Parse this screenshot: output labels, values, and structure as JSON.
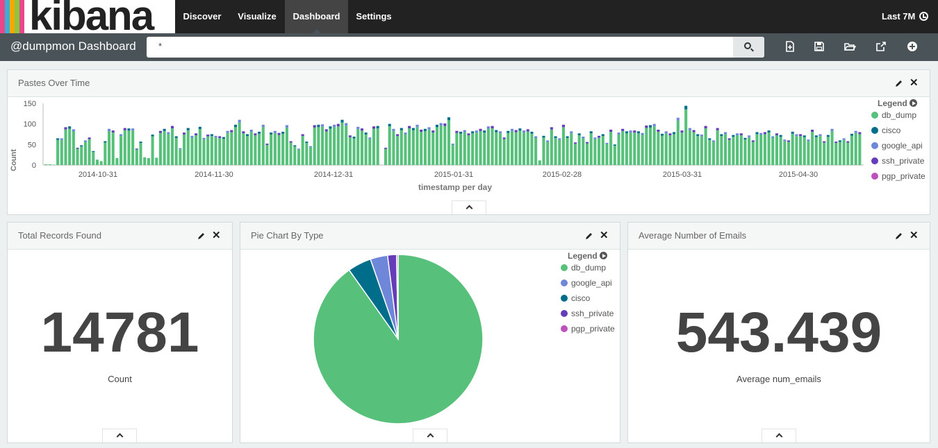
{
  "app": {
    "name": "kibana"
  },
  "nav": {
    "tabs": [
      {
        "label": "Discover"
      },
      {
        "label": "Visualize"
      },
      {
        "label": "Dashboard"
      },
      {
        "label": "Settings"
      }
    ],
    "active_tab": "Dashboard",
    "time_picker": "Last 7M"
  },
  "dashboard": {
    "title": "@dumpmon Dashboard",
    "query": "*"
  },
  "colors": {
    "db_dump": "#57c17b",
    "cisco": "#006e8a",
    "google_api": "#6f87d8",
    "ssh_private": "#663db8",
    "pgp_private": "#bc52bc"
  },
  "panels": {
    "pastes": {
      "title": "Pastes Over Time",
      "xlabel": "timestamp per day",
      "ylabel": "Count",
      "legend_title": "Legend",
      "legend": [
        "db_dump",
        "cisco",
        "google_api",
        "ssh_private",
        "pgp_private"
      ]
    },
    "total": {
      "title": "Total Records Found",
      "value": "14781",
      "label": "Count"
    },
    "pie": {
      "title": "Pie Chart By Type",
      "legend_title": "Legend",
      "legend": [
        "db_dump",
        "google_api",
        "cisco",
        "ssh_private",
        "pgp_private"
      ]
    },
    "average": {
      "title": "Average Number of Emails",
      "value": "543.439",
      "label": "Average num_emails"
    }
  },
  "chart_data": [
    {
      "type": "bar",
      "ylabel": "Count",
      "xlabel": "timestamp per day",
      "ylim": [
        0,
        150
      ],
      "yticks": [
        0,
        50,
        100,
        150
      ],
      "xticks": [
        "2014-10-31",
        "2014-11-30",
        "2014-12-31",
        "2015-01-31",
        "2015-02-28",
        "2015-03-31",
        "2015-04-30"
      ],
      "stacked": true,
      "grid": false,
      "legend": "right",
      "series_names": [
        "db_dump",
        "cisco",
        "google_api",
        "ssh_private",
        "pgp_private"
      ],
      "totals": [
        2,
        2,
        1,
        65,
        65,
        92,
        94,
        87,
        42,
        48,
        60,
        67,
        34,
        14,
        10,
        58,
        88,
        84,
        18,
        75,
        90,
        89,
        89,
        40,
        57,
        20,
        18,
        74,
        19,
        83,
        88,
        80,
        95,
        70,
        41,
        79,
        90,
        71,
        77,
        93,
        66,
        74,
        75,
        71,
        70,
        68,
        83,
        85,
        98,
        110,
        82,
        75,
        86,
        77,
        81,
        98,
        52,
        79,
        83,
        78,
        81,
        97,
        58,
        48,
        40,
        75,
        57,
        46,
        97,
        98,
        99,
        87,
        94,
        98,
        100,
        110,
        102,
        72,
        69,
        93,
        89,
        79,
        67,
        94,
        95,
        0,
        42,
        100,
        88,
        75,
        90,
        79,
        95,
        90,
        98,
        86,
        88,
        92,
        84,
        98,
        102,
        101,
        116,
        52,
        83,
        81,
        85,
        77,
        82,
        84,
        88,
        84,
        94,
        95,
        85,
        82,
        67,
        83,
        88,
        85,
        89,
        84,
        87,
        81,
        70,
        12,
        71,
        60,
        92,
        70,
        65,
        98,
        70,
        82,
        55,
        77,
        69,
        56,
        82,
        67,
        71,
        75,
        54,
        86,
        50,
        79,
        88,
        82,
        84,
        84,
        82,
        78,
        96,
        97,
        100,
        86,
        76,
        82,
        77,
        80,
        115,
        84,
        144,
        90,
        85,
        75,
        74,
        95,
        65,
        60,
        90,
        75,
        80,
        65,
        73,
        77,
        77,
        66,
        72,
        60,
        80,
        78,
        80,
        84,
        70,
        77,
        73,
        62,
        60,
        81,
        75,
        75,
        72,
        62,
        86,
        72,
        75,
        58,
        73,
        88,
        57,
        60,
        65,
        58,
        76,
        83,
        80
      ],
      "other_fraction": 0.06
    },
    {
      "type": "pie",
      "categories": [
        "db_dump",
        "cisco",
        "google_api",
        "ssh_private",
        "pgp_private"
      ],
      "values": [
        90.2,
        4.5,
        3.3,
        1.7,
        0.3
      ],
      "legend": "right"
    }
  ]
}
